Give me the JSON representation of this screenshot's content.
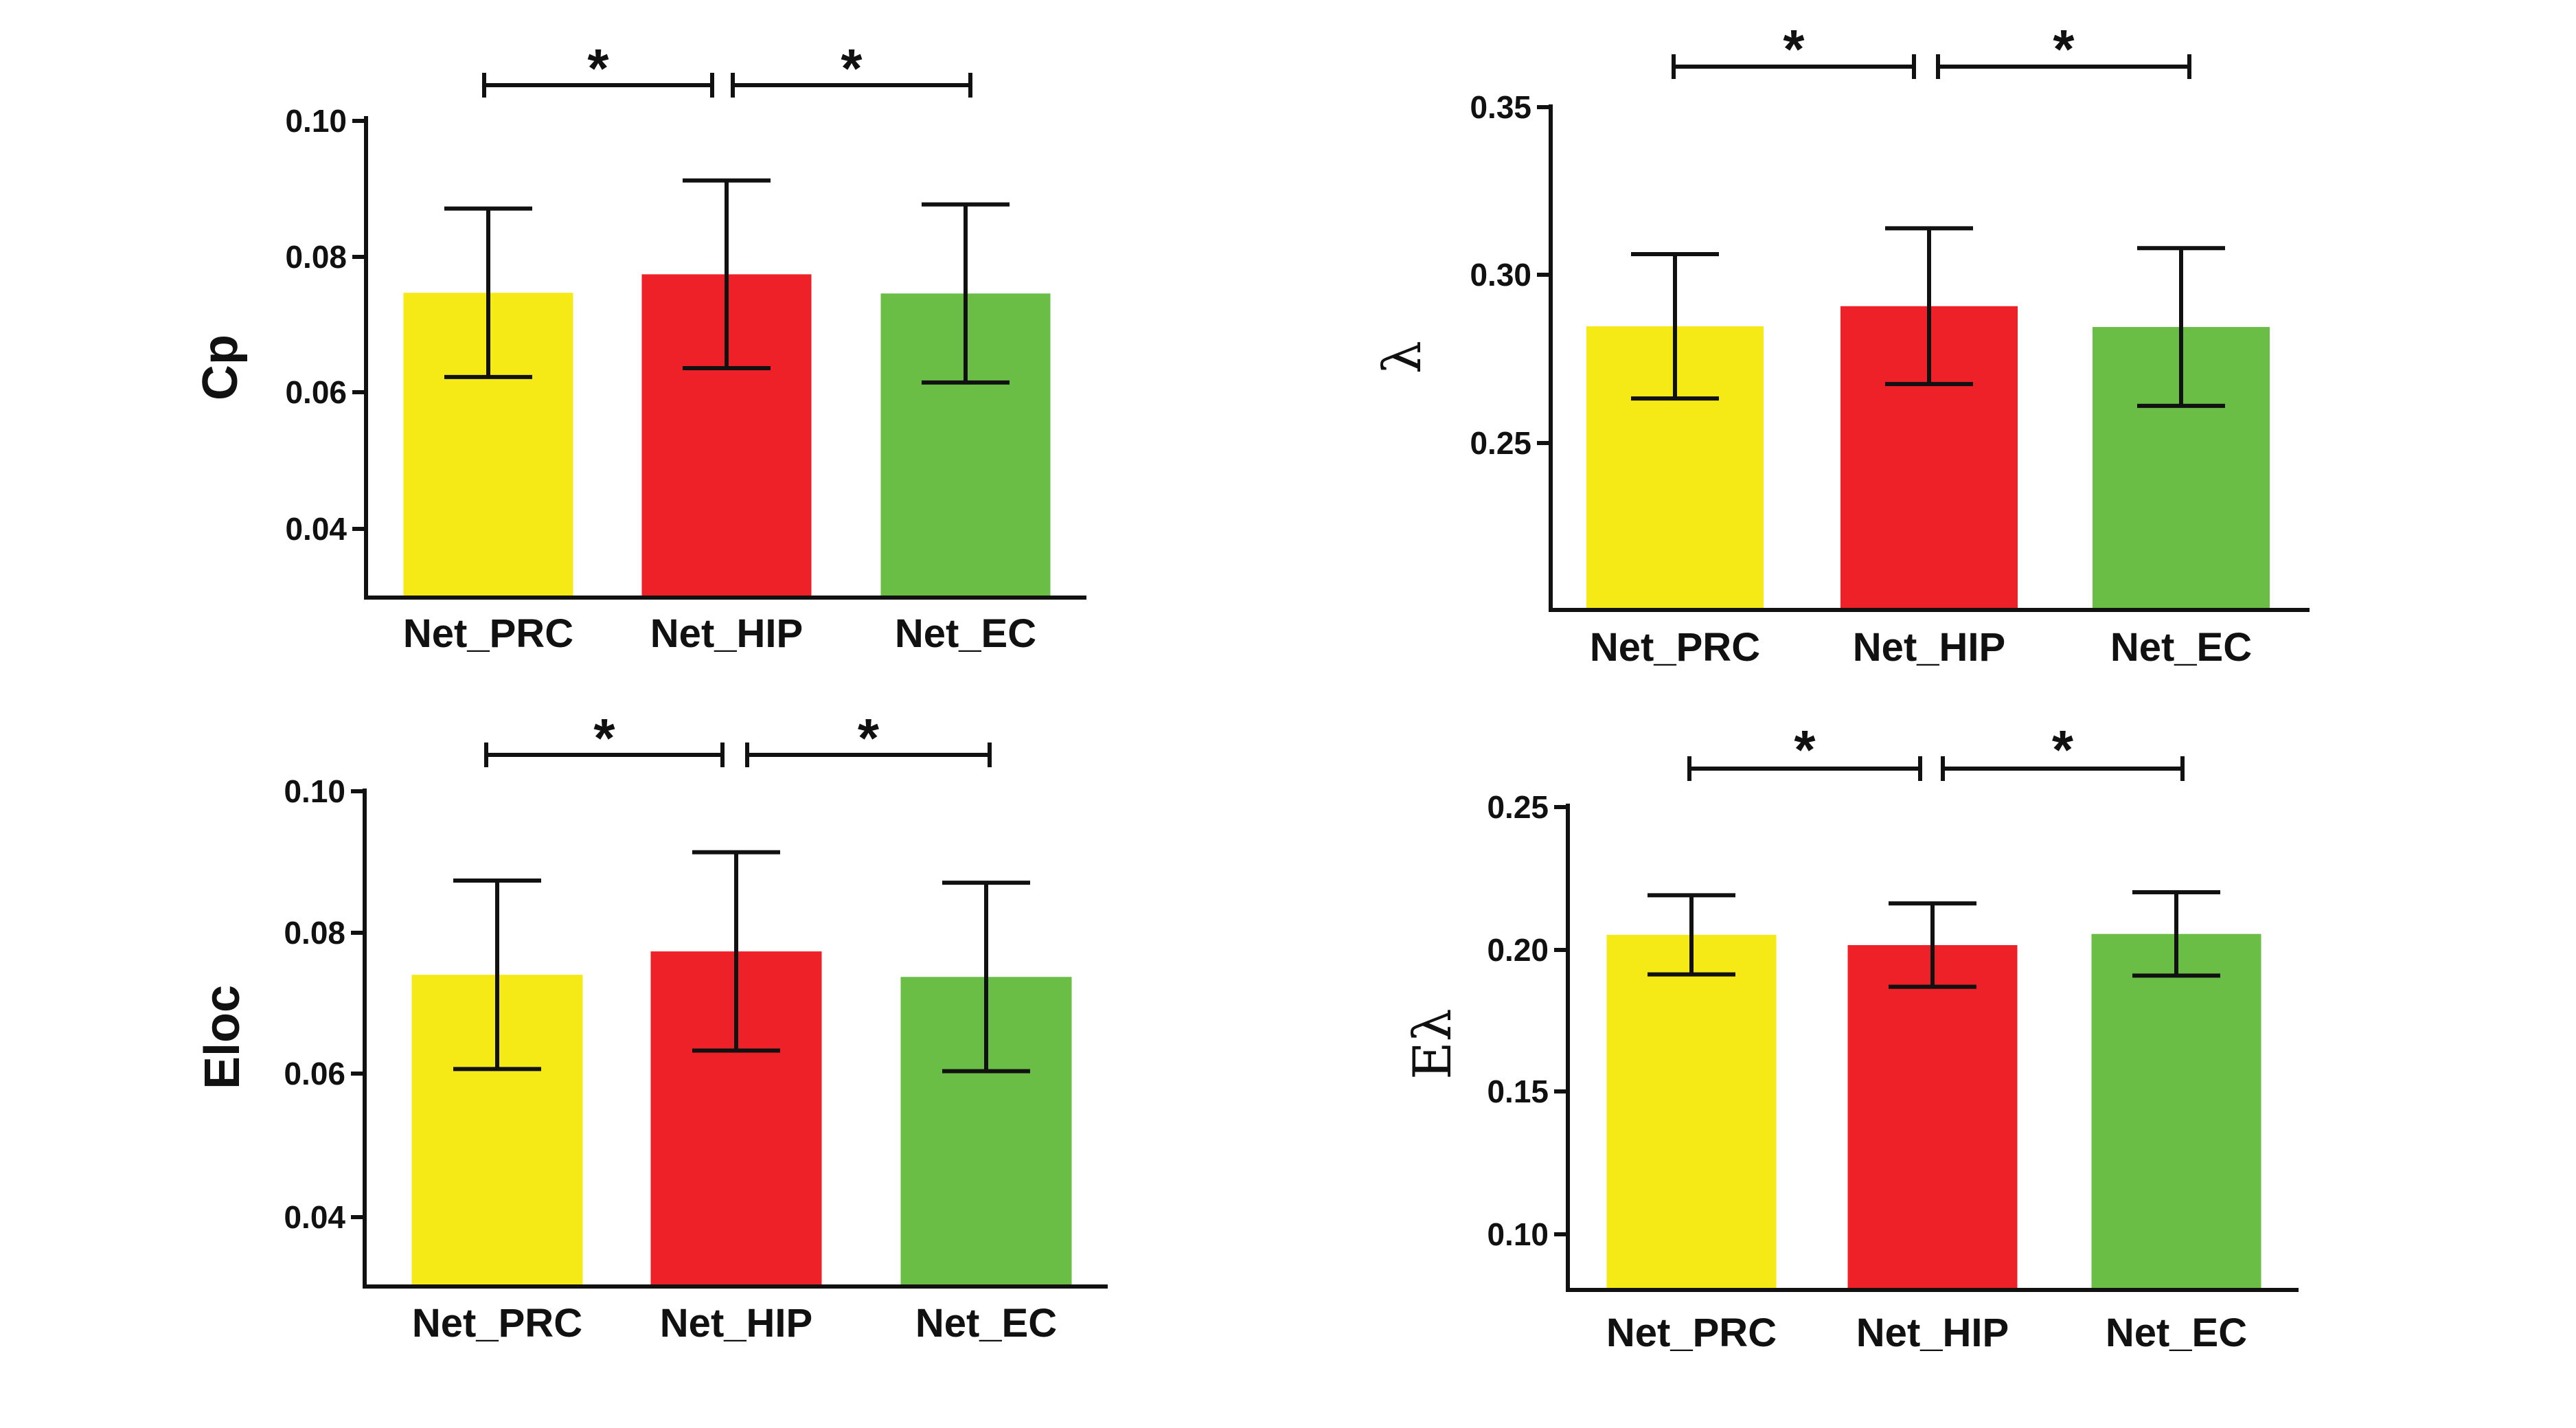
{
  "chart_data": [
    {
      "type": "bar",
      "id": "cp",
      "ylabel": "Cp",
      "categories": [
        "Net_PRC",
        "Net_HIP",
        "Net_EC"
      ],
      "values": [
        0.0745,
        0.0772,
        0.0744
      ],
      "errors": [
        0.0123,
        0.0137,
        0.013
      ],
      "colors": [
        "#f5e916",
        "#ee2128",
        "#6abd45"
      ],
      "ylim": [
        0.03,
        0.1
      ],
      "yticks": [
        "0.04",
        "0.06",
        "0.08",
        "0.10"
      ],
      "significance": [
        {
          "from": 0,
          "to": 1,
          "label": "*"
        },
        {
          "from": 1,
          "to": 2,
          "label": "*"
        }
      ]
    },
    {
      "type": "bar",
      "id": "lambda",
      "ylabel": "λ",
      "categories": [
        "Net_PRC",
        "Net_HIP",
        "Net_EC"
      ],
      "values": [
        0.2845,
        0.2905,
        0.2843
      ],
      "errors": [
        0.0215,
        0.0232,
        0.0235
      ],
      "colors": [
        "#f5e916",
        "#ee2128",
        "#6abd45"
      ],
      "ylim": [
        0.2,
        0.35
      ],
      "yticks": [
        "0.25",
        "0.30",
        "0.35"
      ],
      "significance": [
        {
          "from": 0,
          "to": 1,
          "label": "*"
        },
        {
          "from": 1,
          "to": 2,
          "label": "*"
        }
      ]
    },
    {
      "type": "bar",
      "id": "eloc",
      "ylabel": "Eloc",
      "categories": [
        "Net_PRC",
        "Net_HIP",
        "Net_EC"
      ],
      "values": [
        0.074,
        0.0773,
        0.0737
      ],
      "errors": [
        0.0133,
        0.014,
        0.0133
      ],
      "colors": [
        "#f5e916",
        "#ee2128",
        "#6abd45"
      ],
      "ylim": [
        0.03,
        0.1
      ],
      "yticks": [
        "0.04",
        "0.06",
        "0.08",
        "0.10"
      ],
      "significance": [
        {
          "from": 0,
          "to": 1,
          "label": "*"
        },
        {
          "from": 1,
          "to": 2,
          "label": "*"
        }
      ]
    },
    {
      "type": "bar",
      "id": "elambda",
      "ylabel": "Eλ",
      "categories": [
        "Net_PRC",
        "Net_HIP",
        "Net_EC"
      ],
      "values": [
        0.206,
        0.2025,
        0.2063
      ],
      "errors": [
        0.0135,
        0.0142,
        0.0142
      ],
      "colors": [
        "#f5e916",
        "#ee2128",
        "#6abd45"
      ],
      "ylim": [
        0.085,
        0.25
      ],
      "yticks": [
        "0.10",
        "0.15",
        "0.20",
        "0.25"
      ],
      "significance": [
        {
          "from": 0,
          "to": 1,
          "label": "*"
        },
        {
          "from": 1,
          "to": 2,
          "label": "*"
        }
      ]
    }
  ]
}
